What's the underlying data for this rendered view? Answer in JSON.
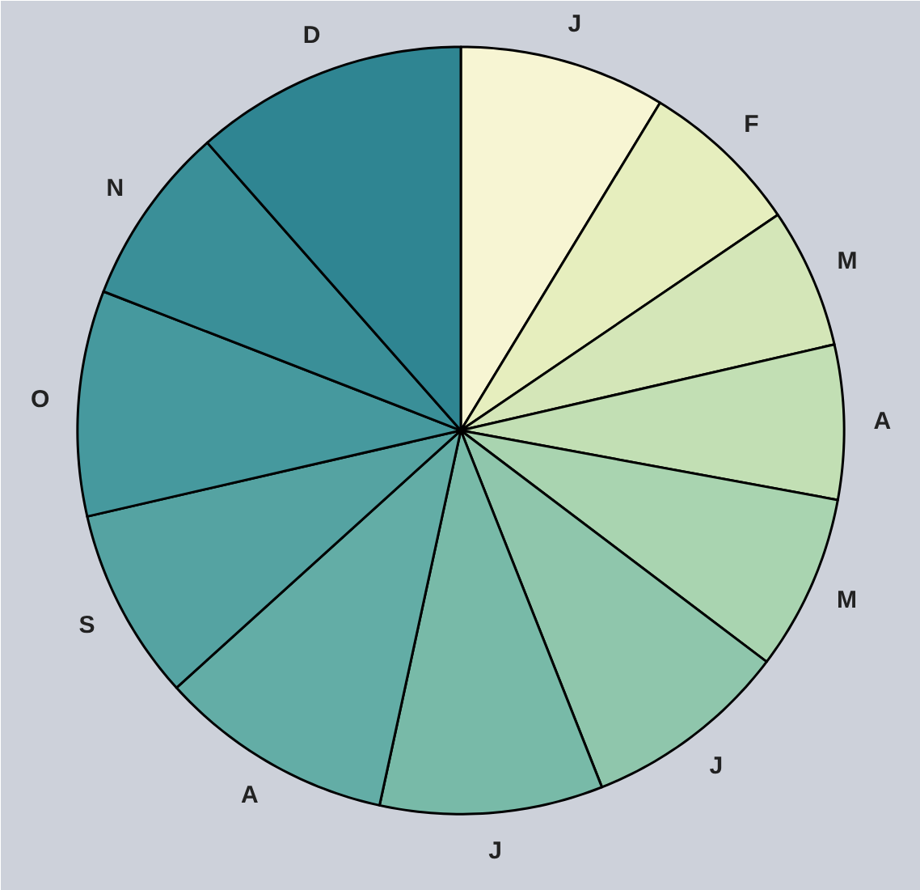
{
  "chart_data": {
    "type": "pie",
    "categories": [
      "J",
      "F",
      "M",
      "A",
      "M",
      "J",
      "J",
      "A",
      "S",
      "O",
      "N",
      "D"
    ],
    "values": [
      8.7,
      6.8,
      5.9,
      6.5,
      7.4,
      8.7,
      9.4,
      9.9,
      8.1,
      9.5,
      7.6,
      11.5
    ],
    "colors": [
      "#f7f5d3",
      "#e6eebe",
      "#d4e6b8",
      "#c2dfb4",
      "#a9d4b0",
      "#8fc6ac",
      "#78baa8",
      "#63ada6",
      "#55a3a2",
      "#46999e",
      "#3a8f98",
      "#2f8592"
    ]
  }
}
